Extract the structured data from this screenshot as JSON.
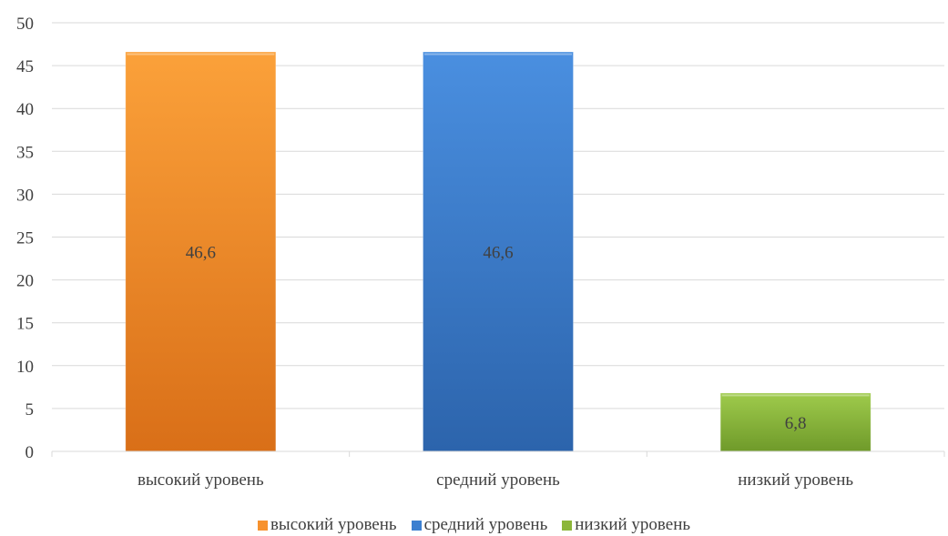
{
  "chart_data": {
    "type": "bar",
    "categories": [
      "высокий уровень",
      "средний уровень",
      "низкий уровень"
    ],
    "values": [
      46.6,
      46.6,
      6.8
    ],
    "data_labels": [
      "46,6",
      "46,6",
      "6,8"
    ],
    "colors": [
      "#f7922e",
      "#3b7fd0",
      "#8cb63a"
    ],
    "ylim": [
      0,
      50
    ],
    "yticks": [
      0,
      5,
      10,
      15,
      20,
      25,
      30,
      35,
      40,
      45,
      50
    ],
    "grid": true,
    "legend_position": "bottom",
    "title": "",
    "xlabel": "",
    "ylabel": ""
  }
}
